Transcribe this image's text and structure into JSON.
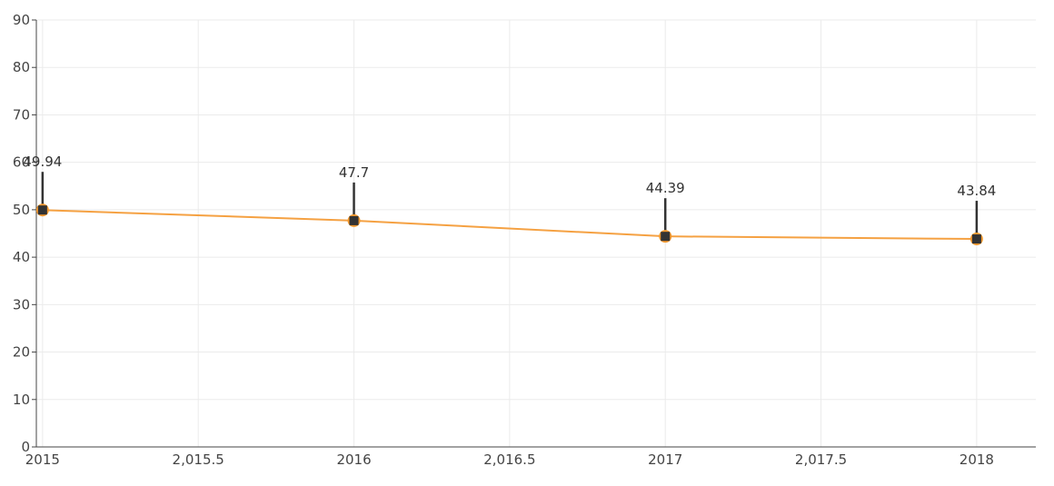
{
  "chart_data": {
    "type": "line",
    "title": "",
    "xlabel": "",
    "ylabel": "",
    "x": [
      2015,
      2016,
      2017,
      2018
    ],
    "series": [
      {
        "values": [
          49.94,
          47.7,
          44.39,
          43.84
        ],
        "color": "#f5a142",
        "marker_color": "#333333",
        "marker_edge_color": "#f59a2f"
      }
    ],
    "data_labels": [
      "49.94",
      "47.7",
      "44.39",
      "43.84"
    ],
    "xlim": [
      2014.98,
      2018.19
    ],
    "ylim": [
      0,
      90
    ],
    "x_ticks": [
      2015,
      2015.5,
      2016,
      2016.5,
      2017,
      2017.5,
      2018
    ],
    "x_tick_labels": [
      "2015",
      "2,015.5",
      "2016",
      "2,016.5",
      "2017",
      "2,017.5",
      "2018"
    ],
    "y_ticks": [
      0,
      10,
      20,
      30,
      40,
      50,
      60,
      70,
      80,
      90
    ],
    "y_tick_labels": [
      "0",
      "10",
      "20",
      "30",
      "40",
      "50",
      "60",
      "70",
      "80",
      "90"
    ],
    "grid": true,
    "legend": "none"
  }
}
